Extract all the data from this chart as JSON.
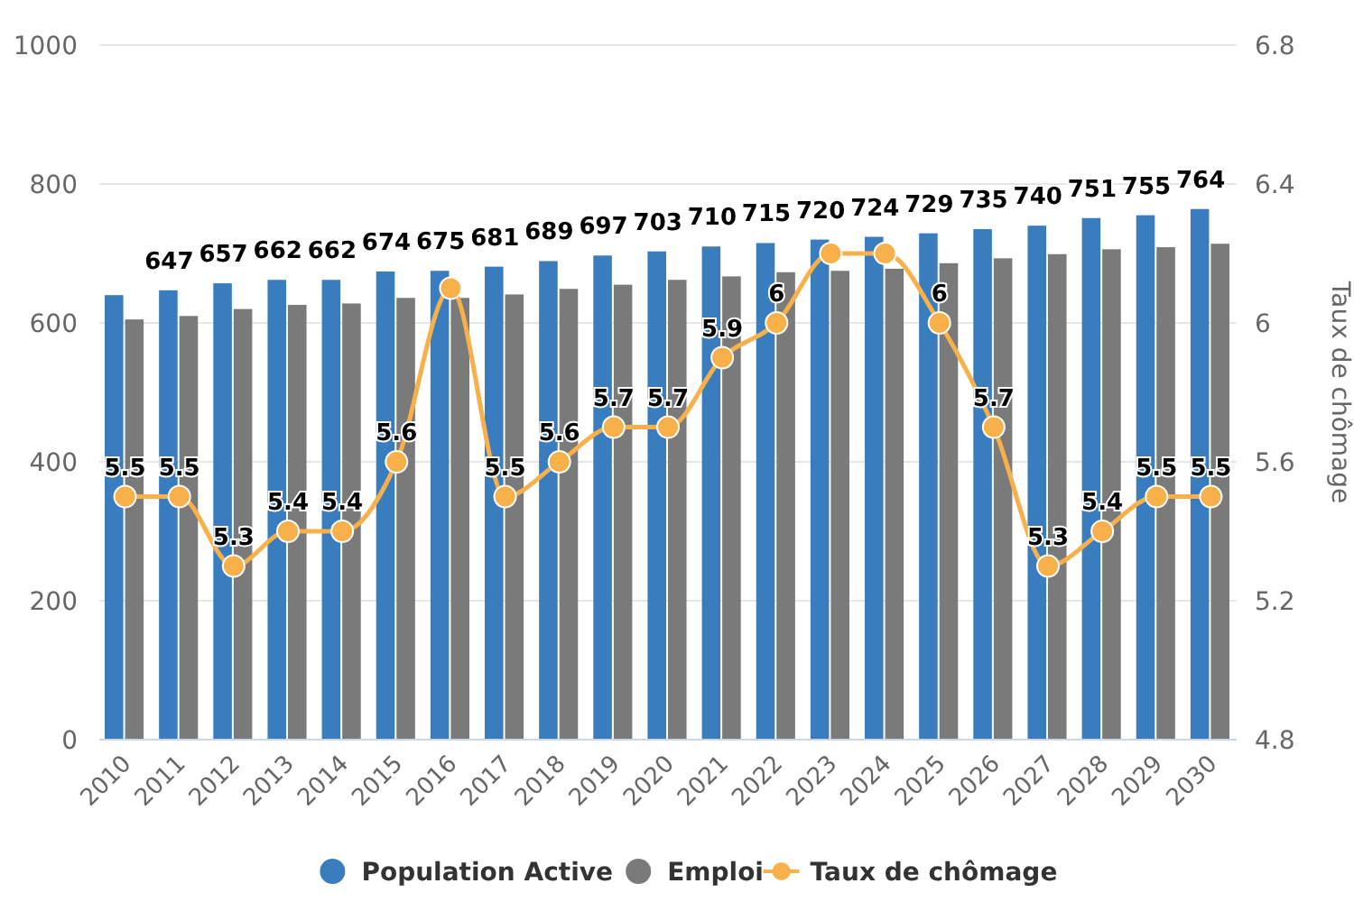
{
  "chart_data": {
    "type": "bar",
    "categories": [
      "2010",
      "2011",
      "2012",
      "2013",
      "2014",
      "2015",
      "2016",
      "2017",
      "2018",
      "2019",
      "2020",
      "2021",
      "2022",
      "2023",
      "2024",
      "2025",
      "2026",
      "2027",
      "2028",
      "2029",
      "2030"
    ],
    "series": [
      {
        "name": "Population Active",
        "color": "#3a7dbf",
        "values": [
          640,
          647,
          657,
          662,
          662,
          674,
          675,
          681,
          689,
          697,
          703,
          710,
          715,
          720,
          724,
          729,
          735,
          740,
          751,
          755,
          764
        ],
        "value_labels": [
          null,
          "647",
          "657",
          "662",
          "662",
          "674",
          "675",
          "681",
          "689",
          "697",
          "703",
          "710",
          "715",
          "720",
          "724",
          "729",
          "735",
          "740",
          "751",
          "755",
          "764"
        ]
      },
      {
        "name": "Emploi",
        "color": "#7a7a7a",
        "values": [
          605,
          610,
          620,
          626,
          628,
          636,
          636,
          641,
          649,
          655,
          662,
          667,
          673,
          675,
          678,
          686,
          693,
          699,
          706,
          709,
          714
        ]
      },
      {
        "name": "Taux de chômage",
        "type": "line",
        "axis": "y2",
        "color": "#f7b04a",
        "marker": "circle",
        "values": [
          5.5,
          5.5,
          5.3,
          5.4,
          5.4,
          5.6,
          6.1,
          5.5,
          5.6,
          5.7,
          5.7,
          5.9,
          6,
          6.2,
          6.2,
          6,
          5.7,
          5.3,
          5.4,
          5.5,
          5.5
        ],
        "value_labels": [
          "5.5",
          "5.5",
          "5.3",
          "5.4",
          "5.4",
          "5.6",
          null,
          "5.5",
          "5.6",
          "5.7",
          "5.7",
          "5.9",
          "6",
          null,
          null,
          "6",
          "5.7",
          "5.3",
          "5.4",
          "5.5",
          "5.5"
        ]
      }
    ],
    "ylim": [
      0,
      1000
    ],
    "yticks": [
      0,
      200,
      400,
      600,
      800,
      1000
    ],
    "y2lim": [
      4.8,
      6.8
    ],
    "y2ticks": [
      4.8,
      5.2,
      5.6,
      6,
      6.4,
      6.8
    ],
    "y2label": "Taux de chômage",
    "grid": "y",
    "legend": "bottom"
  }
}
